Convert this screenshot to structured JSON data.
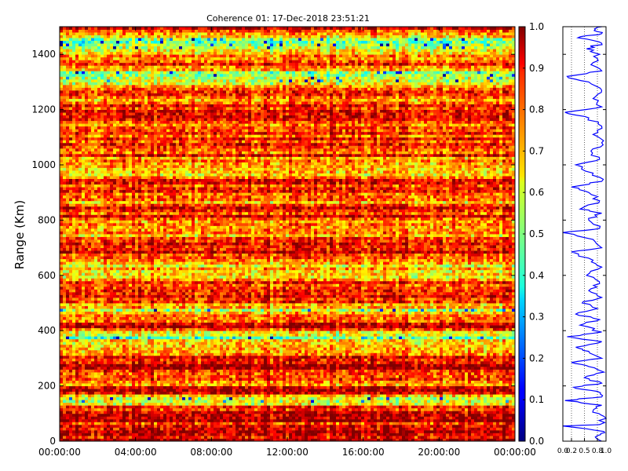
{
  "chart_data": [
    {
      "type": "heatmap",
      "title": "Coherence 01: 17-Dec-2018 23:51:21",
      "ylabel": "Range (Km)",
      "xlabel": "",
      "x_ticks": [
        "00:00:00",
        "04:00:00",
        "08:00:00",
        "12:00:00",
        "16:00:00",
        "20:00:00",
        "00:00:00"
      ],
      "x_range": [
        "00:00:00",
        "00:00:00"
      ],
      "y_ticks": [
        0,
        200,
        400,
        600,
        800,
        1000,
        1200,
        1400
      ],
      "ylim": [
        0,
        1500
      ],
      "value_range": [
        0.0,
        1.0
      ],
      "colormap": "jet",
      "colorbar_ticks": [
        "0.0",
        "0.1",
        "0.2",
        "0.3",
        "0.4",
        "0.5",
        "0.6",
        "0.7",
        "0.8",
        "0.9",
        "1.0"
      ],
      "grid": false,
      "typical_range_profile": [
        {
          "range": 0,
          "value": 0.95
        },
        {
          "range": 40,
          "value": 0.85
        },
        {
          "range": 80,
          "value": 0.9
        },
        {
          "range": 120,
          "value": 0.85
        },
        {
          "range": 147,
          "value": 0.55
        },
        {
          "range": 180,
          "value": 0.9
        },
        {
          "range": 215,
          "value": 0.75
        },
        {
          "range": 240,
          "value": 0.85
        },
        {
          "range": 280,
          "value": 0.9
        },
        {
          "range": 320,
          "value": 0.8
        },
        {
          "range": 350,
          "value": 0.7
        },
        {
          "range": 378,
          "value": 0.45
        },
        {
          "range": 410,
          "value": 0.9
        },
        {
          "range": 440,
          "value": 0.8
        },
        {
          "range": 470,
          "value": 0.6
        },
        {
          "range": 500,
          "value": 0.8
        },
        {
          "range": 540,
          "value": 0.9
        },
        {
          "range": 580,
          "value": 0.75
        },
        {
          "range": 630,
          "value": 0.7
        },
        {
          "range": 680,
          "value": 0.88
        },
        {
          "range": 730,
          "value": 0.8
        },
        {
          "range": 780,
          "value": 0.72
        },
        {
          "range": 830,
          "value": 0.85
        },
        {
          "range": 880,
          "value": 0.75
        },
        {
          "range": 930,
          "value": 0.85
        },
        {
          "range": 990,
          "value": 0.62
        },
        {
          "range": 1040,
          "value": 0.85
        },
        {
          "range": 1100,
          "value": 0.8
        },
        {
          "range": 1150,
          "value": 0.85
        },
        {
          "range": 1200,
          "value": 0.78
        },
        {
          "range": 1260,
          "value": 0.85
        },
        {
          "range": 1320,
          "value": 0.45
        },
        {
          "range": 1360,
          "value": 0.85
        },
        {
          "range": 1410,
          "value": 0.68
        },
        {
          "range": 1460,
          "value": 0.5
        },
        {
          "range": 1490,
          "value": 0.85
        }
      ]
    },
    {
      "type": "line",
      "title": "",
      "xlabel": "",
      "ylabel": "",
      "xlim": [
        0.0,
        1.0
      ],
      "x_ticks": [
        "0.0",
        "0.2",
        "0.5",
        "0.8",
        "1.0"
      ],
      "ylim": [
        0,
        1500
      ],
      "grid": true,
      "series": [
        {
          "color": "#0000ff",
          "points": [
            {
              "range": 0,
              "value": 0.9
            },
            {
              "range": 20,
              "value": 0.8
            },
            {
              "range": 35,
              "value": 0.95
            },
            {
              "range": 55,
              "value": 0.0
            },
            {
              "range": 60,
              "value": 0.85
            },
            {
              "range": 90,
              "value": 0.95
            },
            {
              "range": 110,
              "value": 0.7
            },
            {
              "range": 130,
              "value": 0.9
            },
            {
              "range": 147,
              "value": 0.05
            },
            {
              "range": 160,
              "value": 0.9
            },
            {
              "range": 180,
              "value": 0.8
            },
            {
              "range": 195,
              "value": 0.25
            },
            {
              "range": 210,
              "value": 0.9
            },
            {
              "range": 230,
              "value": 0.5
            },
            {
              "range": 250,
              "value": 0.95
            },
            {
              "range": 270,
              "value": 0.6
            },
            {
              "range": 285,
              "value": 0.2
            },
            {
              "range": 300,
              "value": 0.9
            },
            {
              "range": 325,
              "value": 0.6
            },
            {
              "range": 340,
              "value": 0.3
            },
            {
              "range": 360,
              "value": 0.9
            },
            {
              "range": 378,
              "value": 0.1
            },
            {
              "range": 395,
              "value": 0.9
            },
            {
              "range": 420,
              "value": 0.4
            },
            {
              "range": 440,
              "value": 0.85
            },
            {
              "range": 460,
              "value": 0.3
            },
            {
              "range": 480,
              "value": 0.8
            },
            {
              "range": 500,
              "value": 0.45
            },
            {
              "range": 520,
              "value": 0.9
            },
            {
              "range": 545,
              "value": 0.6
            },
            {
              "range": 570,
              "value": 0.85
            },
            {
              "range": 600,
              "value": 0.55
            },
            {
              "range": 630,
              "value": 0.9
            },
            {
              "range": 655,
              "value": 0.7
            },
            {
              "range": 685,
              "value": 0.2
            },
            {
              "range": 700,
              "value": 0.9
            },
            {
              "range": 730,
              "value": 0.7
            },
            {
              "range": 755,
              "value": 0.0
            },
            {
              "range": 770,
              "value": 0.85
            },
            {
              "range": 800,
              "value": 0.6
            },
            {
              "range": 825,
              "value": 0.9
            },
            {
              "range": 840,
              "value": 0.4
            },
            {
              "range": 870,
              "value": 0.85
            },
            {
              "range": 900,
              "value": 0.6
            },
            {
              "range": 920,
              "value": 0.2
            },
            {
              "range": 940,
              "value": 0.9
            },
            {
              "range": 970,
              "value": 0.7
            },
            {
              "range": 1000,
              "value": 0.3
            },
            {
              "range": 1020,
              "value": 0.85
            },
            {
              "range": 1050,
              "value": 0.65
            },
            {
              "range": 1080,
              "value": 0.9
            },
            {
              "range": 1110,
              "value": 0.7
            },
            {
              "range": 1140,
              "value": 0.9
            },
            {
              "range": 1170,
              "value": 0.6
            },
            {
              "range": 1190,
              "value": 0.05
            },
            {
              "range": 1210,
              "value": 0.9
            },
            {
              "range": 1240,
              "value": 0.7
            },
            {
              "range": 1270,
              "value": 0.9
            },
            {
              "range": 1300,
              "value": 0.6
            },
            {
              "range": 1320,
              "value": 0.1
            },
            {
              "range": 1340,
              "value": 0.9
            },
            {
              "range": 1370,
              "value": 0.7
            },
            {
              "range": 1400,
              "value": 0.85
            },
            {
              "range": 1420,
              "value": 0.55
            },
            {
              "range": 1440,
              "value": 0.9
            },
            {
              "range": 1460,
              "value": 0.35
            },
            {
              "range": 1475,
              "value": 0.9
            },
            {
              "range": 1490,
              "value": 0.75
            },
            {
              "range": 1500,
              "value": 0.9
            }
          ]
        }
      ]
    }
  ]
}
